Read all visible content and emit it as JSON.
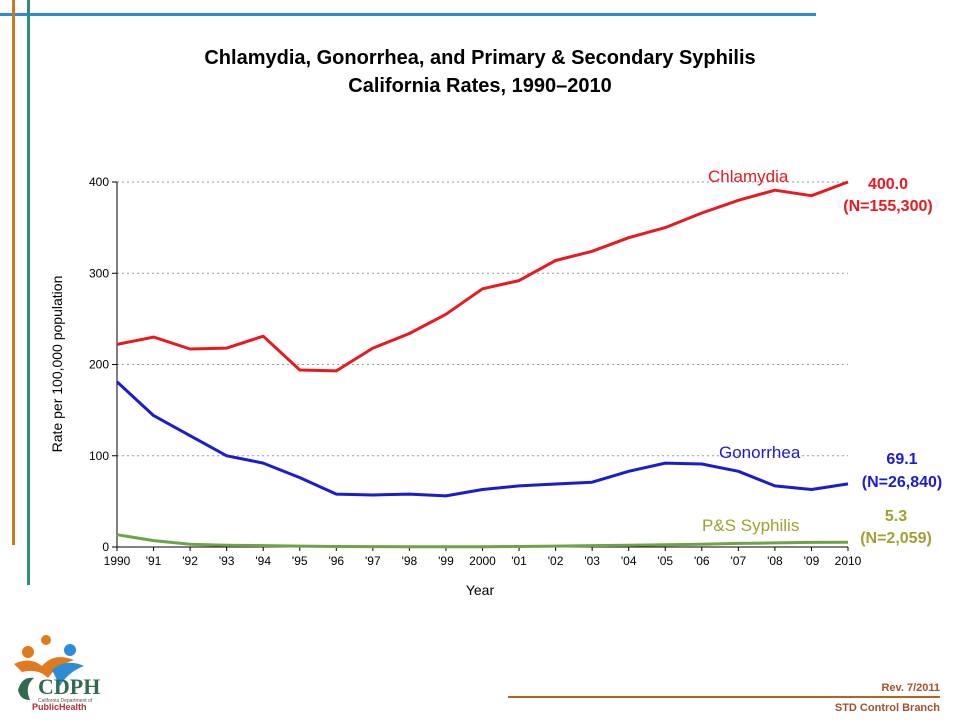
{
  "header": {
    "title_line1": "Chlamydia, Gonorrhea, and Primary & Secondary Syphilis",
    "title_line2": "California Rates, 1990–2010"
  },
  "chart_data": {
    "type": "line",
    "categories": [
      "1990",
      "'91",
      "'92",
      "'93",
      "'94",
      "'95",
      "'96",
      "'97",
      "'98",
      "'99",
      "2000",
      "'01",
      "'02",
      "'03",
      "'04",
      "'05",
      "'06",
      "'07",
      "'08",
      "'09",
      "2010"
    ],
    "series": [
      {
        "name": "Chlamydia",
        "color": "#e8191f",
        "values": [
          222,
          230,
          217,
          218,
          231,
          194,
          193,
          218,
          234,
          255,
          283,
          292,
          314,
          324,
          339,
          350,
          366,
          380,
          391,
          385,
          400.0
        ]
      },
      {
        "name": "Gonorrhea",
        "color": "#1c1ccf",
        "values": [
          181,
          144,
          122,
          100,
          92,
          76,
          58,
          57,
          58,
          56,
          63,
          67,
          69,
          71,
          83,
          92,
          91,
          83,
          67,
          63,
          69.1
        ]
      },
      {
        "name": "P&S Syphilis",
        "color": "#6fa347",
        "values": [
          13.5,
          7,
          3,
          2,
          1.5,
          1,
          0.5,
          0.4,
          0.3,
          0.3,
          0.3,
          0.5,
          1,
          1.5,
          2,
          2.5,
          3,
          4,
          4.5,
          5,
          5.3
        ]
      }
    ],
    "labels": {
      "chlamydia_value": "400.0",
      "chlamydia_n": "(N=155,300)",
      "gonorrhea_value": "69.1",
      "gonorrhea_n": "(N=26,840)",
      "syphilis_value": "5.3",
      "syphilis_n": "(N=2,059)"
    },
    "yticks": [
      "0",
      "100",
      "200",
      "300",
      "400"
    ],
    "ylim": [
      0,
      400
    ],
    "xlabel": "Year",
    "ylabel": "Rate per 100,000 population",
    "grid": "horizontal-dotted"
  },
  "footer": {
    "rev": "Rev. 7/2011",
    "branch": "STD Control Branch"
  },
  "logo": {
    "text_main": "CDPH",
    "text_sub": "California Department of",
    "text_public": "PublicHealth"
  },
  "colors": {
    "top_rule": "#2e8bd6",
    "left_orange": "#c97a1e",
    "left_teal": "#2f8f7f",
    "footer_rule": "#b5651d",
    "label_olive": "#a0a030"
  }
}
